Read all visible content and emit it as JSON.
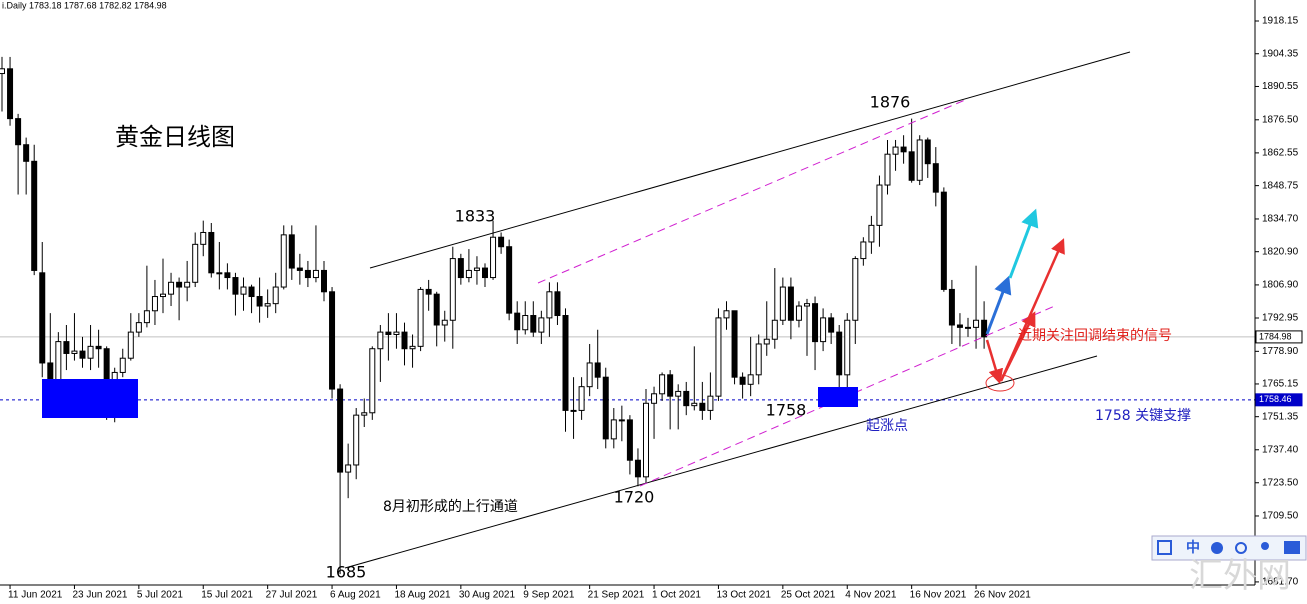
{
  "chart_data": {
    "type": "candlestick",
    "header": "i.Daily  1783.18 1787.68 1782.82 1784.98",
    "categories": [
      null,
      "11 Jun 2021",
      null,
      null,
      null,
      null,
      null,
      null,
      null,
      "23 Jun 2021",
      null,
      null,
      null,
      null,
      null,
      null,
      null,
      "5 Jul 2021",
      null,
      null,
      null,
      null,
      null,
      null,
      null,
      "15 Jul 2021",
      null,
      null,
      null,
      null,
      null,
      null,
      null,
      "27 Jul 2021",
      null,
      null,
      null,
      null,
      null,
      null,
      null,
      "6 Aug 2021",
      null,
      null,
      null,
      null,
      null,
      null,
      null,
      "18 Aug 2021",
      null,
      null,
      null,
      null,
      null,
      null,
      null,
      "30 Aug 2021",
      null,
      null,
      null,
      null,
      null,
      null,
      null,
      "9 Sep 2021",
      null,
      null,
      null,
      null,
      null,
      null,
      null,
      "21 Sep 2021",
      null,
      null,
      null,
      null,
      null,
      null,
      null,
      "1 Oct 2021",
      null,
      null,
      null,
      null,
      null,
      null,
      null,
      "13 Oct 2021",
      null,
      null,
      null,
      null,
      null,
      null,
      null,
      "25 Oct 2021",
      null,
      null,
      null,
      null,
      null,
      null,
      null,
      "4 Nov 2021",
      null,
      null,
      null,
      null,
      null,
      null,
      null,
      "16 Nov 2021",
      null,
      null,
      null,
      null,
      null,
      null,
      null,
      "26 Nov 2021",
      null
    ],
    "ohlc": [
      [
        1896,
        1903,
        1880,
        1898
      ],
      [
        1898,
        1903,
        1874,
        1877
      ],
      [
        1877,
        1879,
        1845,
        1866
      ],
      [
        1866,
        1869,
        1845,
        1859
      ],
      [
        1859,
        1866,
        1811,
        1813
      ],
      [
        1812,
        1825,
        1768,
        1774
      ],
      [
        1774,
        1795,
        1761,
        1764
      ],
      [
        1764,
        1787,
        1761,
        1783
      ],
      [
        1783,
        1790,
        1771,
        1778
      ],
      [
        1778,
        1795,
        1775,
        1779
      ],
      [
        1779,
        1785,
        1772,
        1776
      ],
      [
        1776,
        1790,
        1771,
        1781
      ],
      [
        1781,
        1788,
        1772,
        1780
      ],
      [
        1780,
        1781,
        1750,
        1761
      ],
      [
        1761,
        1772,
        1749,
        1770
      ],
      [
        1770,
        1780,
        1768,
        1776
      ],
      [
        1776,
        1795,
        1775,
        1787
      ],
      [
        1787,
        1795,
        1785,
        1791
      ],
      [
        1791,
        1815,
        1789,
        1796
      ],
      [
        1796,
        1809,
        1790,
        1802
      ],
      [
        1802,
        1818,
        1795,
        1803
      ],
      [
        1803,
        1812,
        1798,
        1808
      ],
      [
        1808,
        1810,
        1792,
        1806
      ],
      [
        1806,
        1817,
        1800,
        1808
      ],
      [
        1808,
        1829,
        1806,
        1824
      ],
      [
        1824,
        1834,
        1819,
        1829
      ],
      [
        1829,
        1833,
        1810,
        1812
      ],
      [
        1812,
        1825,
        1805,
        1812
      ],
      [
        1812,
        1816,
        1805,
        1810
      ],
      [
        1810,
        1812,
        1794,
        1803
      ],
      [
        1803,
        1810,
        1796,
        1806
      ],
      [
        1806,
        1807,
        1795,
        1802
      ],
      [
        1802,
        1810,
        1791,
        1798
      ],
      [
        1798,
        1805,
        1793,
        1799
      ],
      [
        1799,
        1812,
        1795,
        1806
      ],
      [
        1806,
        1832,
        1805,
        1828
      ],
      [
        1828,
        1832,
        1809,
        1814
      ],
      [
        1814,
        1820,
        1807,
        1813
      ],
      [
        1813,
        1817,
        1806,
        1810
      ],
      [
        1810,
        1832,
        1808,
        1813
      ],
      [
        1813,
        1817,
        1800,
        1804
      ],
      [
        1804,
        1806,
        1759,
        1763
      ],
      [
        1763,
        1765,
        1685,
        1728
      ],
      [
        1728,
        1740,
        1717,
        1731
      ],
      [
        1731,
        1755,
        1725,
        1752
      ],
      [
        1752,
        1759,
        1747,
        1753
      ],
      [
        1753,
        1781,
        1750,
        1780
      ],
      [
        1780,
        1790,
        1766,
        1787
      ],
      [
        1787,
        1795,
        1775,
        1786
      ],
      [
        1786,
        1795,
        1780,
        1787
      ],
      [
        1787,
        1791,
        1773,
        1780
      ],
      [
        1780,
        1786,
        1772,
        1781
      ],
      [
        1781,
        1806,
        1779,
        1805
      ],
      [
        1805,
        1809,
        1796,
        1803
      ],
      [
        1803,
        1804,
        1781,
        1790
      ],
      [
        1790,
        1796,
        1783,
        1792
      ],
      [
        1792,
        1823,
        1780,
        1818
      ],
      [
        1818,
        1820,
        1807,
        1810
      ],
      [
        1810,
        1822,
        1808,
        1813
      ],
      [
        1813,
        1819,
        1807,
        1814
      ],
      [
        1814,
        1816,
        1806,
        1810
      ],
      [
        1810,
        1834,
        1809,
        1827
      ],
      [
        1827,
        1829,
        1820,
        1823
      ],
      [
        1823,
        1826,
        1792,
        1795
      ],
      [
        1795,
        1800,
        1782,
        1788
      ],
      [
        1788,
        1800,
        1786,
        1794
      ],
      [
        1794,
        1800,
        1785,
        1787
      ],
      [
        1787,
        1796,
        1782,
        1793
      ],
      [
        1793,
        1808,
        1785,
        1804
      ],
      [
        1804,
        1808,
        1790,
        1794
      ],
      [
        1794,
        1797,
        1745,
        1754
      ],
      [
        1754,
        1768,
        1742,
        1754
      ],
      [
        1754,
        1768,
        1750,
        1764
      ],
      [
        1764,
        1782,
        1760,
        1774
      ],
      [
        1774,
        1788,
        1763,
        1768
      ],
      [
        1768,
        1772,
        1738,
        1742
      ],
      [
        1742,
        1755,
        1738,
        1750
      ],
      [
        1750,
        1756,
        1741,
        1750
      ],
      [
        1750,
        1752,
        1727,
        1733
      ],
      [
        1733,
        1738,
        1722,
        1726
      ],
      [
        1726,
        1763,
        1723,
        1757
      ],
      [
        1757,
        1764,
        1742,
        1761
      ],
      [
        1761,
        1770,
        1758,
        1769
      ],
      [
        1769,
        1771,
        1746,
        1760
      ],
      [
        1760,
        1765,
        1746,
        1762
      ],
      [
        1762,
        1766,
        1752,
        1756
      ],
      [
        1756,
        1781,
        1754,
        1757
      ],
      [
        1757,
        1766,
        1750,
        1754
      ],
      [
        1754,
        1770,
        1750,
        1760
      ],
      [
        1760,
        1797,
        1758,
        1793
      ],
      [
        1793,
        1800,
        1788,
        1796
      ],
      [
        1796,
        1796,
        1765,
        1768
      ],
      [
        1768,
        1770,
        1759,
        1765
      ],
      [
        1765,
        1785,
        1760,
        1769
      ],
      [
        1769,
        1786,
        1765,
        1782
      ],
      [
        1782,
        1800,
        1777,
        1784
      ],
      [
        1784,
        1814,
        1780,
        1792
      ],
      [
        1792,
        1810,
        1790,
        1806
      ],
      [
        1806,
        1810,
        1784,
        1792
      ],
      [
        1792,
        1800,
        1789,
        1798
      ],
      [
        1798,
        1801,
        1777,
        1799
      ],
      [
        1799,
        1802,
        1771,
        1783
      ],
      [
        1783,
        1797,
        1779,
        1793
      ],
      [
        1793,
        1795,
        1782,
        1787
      ],
      [
        1787,
        1790,
        1759,
        1769
      ],
      [
        1769,
        1795,
        1758,
        1792
      ],
      [
        1792,
        1819,
        1782,
        1818
      ],
      [
        1818,
        1827,
        1815,
        1825
      ],
      [
        1825,
        1836,
        1820,
        1832
      ],
      [
        1832,
        1853,
        1823,
        1849
      ],
      [
        1849,
        1868,
        1845,
        1862
      ],
      [
        1862,
        1868,
        1855,
        1865
      ],
      [
        1865,
        1870,
        1858,
        1863
      ],
      [
        1863,
        1877,
        1850,
        1851
      ],
      [
        1851,
        1870,
        1849,
        1868
      ],
      [
        1868,
        1869,
        1852,
        1858
      ],
      [
        1858,
        1865,
        1840,
        1846
      ],
      [
        1846,
        1848,
        1804,
        1805
      ],
      [
        1805,
        1809,
        1782,
        1790
      ],
      [
        1790,
        1795,
        1781,
        1789
      ],
      [
        1789,
        1793,
        1785,
        1789
      ],
      [
        1789,
        1815,
        1780,
        1792
      ],
      [
        1792,
        1800,
        1780,
        1785
      ]
    ],
    "ylim": [
      1680.4,
      1927
    ],
    "yticks": [
      1918.15,
      1904.35,
      1890.55,
      {
        "value": 1876.5,
        "label": "1876.50"
      },
      1862.55,
      1848.75,
      {
        "value": 1834.7,
        "label": "1834.70"
      },
      {
        "value": 1820.9,
        "label": "1820.90"
      },
      {
        "value": 1806.9,
        "label": "1806.90"
      },
      1792.95,
      {
        "value": 1778.9,
        "label": "1778.90"
      },
      1765.15,
      1751.35,
      {
        "value": 1737.4,
        "label": "1737.40"
      },
      {
        "value": 1723.5,
        "label": "1723.50"
      },
      {
        "value": 1709.5,
        "label": "1709.50"
      },
      1695.55,
      {
        "value": 1681.7,
        "label": "1681.70"
      }
    ],
    "price_lines": [
      {
        "value": 1784.98,
        "color": "#c0c0c0",
        "dashed": false
      },
      {
        "value": 1758.46,
        "color": "#0000c8",
        "dashed": true
      }
    ],
    "annotations": [
      "黄金日线图",
      "1833",
      "1876",
      "1758",
      "1720",
      "1685",
      "8月初形成的上行通道",
      "起涨点",
      "近期关注回调结束的信号",
      "1758 关键支撑"
    ],
    "toolbar": "中",
    "watermark": "汇外网"
  }
}
